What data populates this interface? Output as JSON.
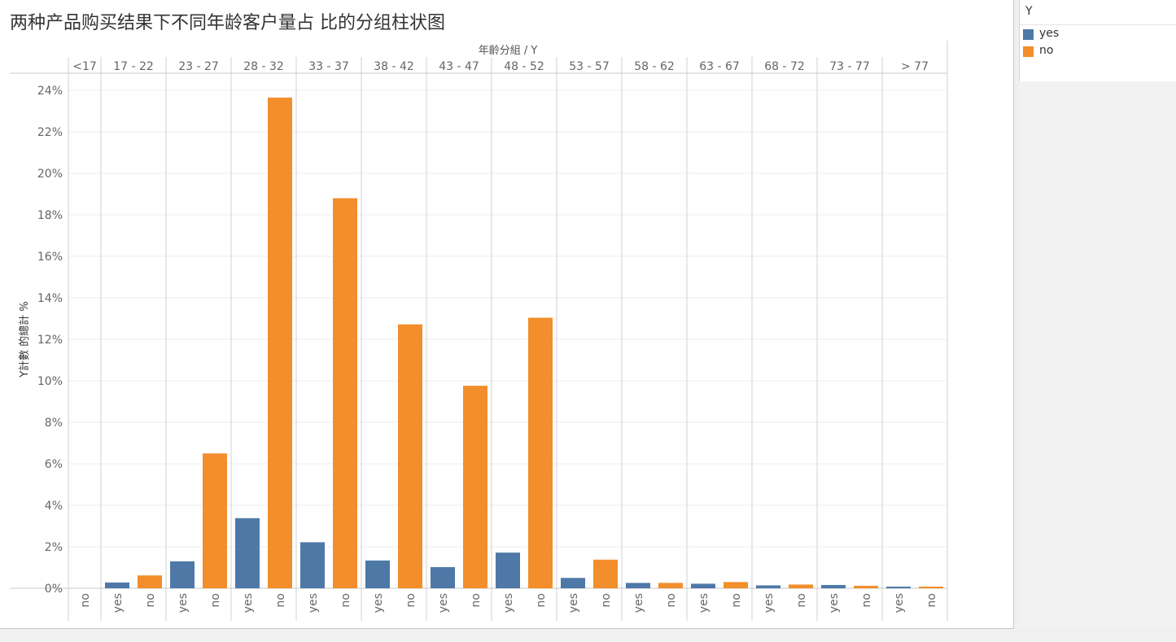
{
  "title": "两种产品购买结果下不同年龄客户量占 比的分组柱状图",
  "legend": {
    "title": "Y",
    "items": [
      {
        "label": "yes",
        "color": "#4e79a7"
      },
      {
        "label": "no",
        "color": "#f28e2b"
      }
    ]
  },
  "chart_data": {
    "type": "bar",
    "title": "两种产品购买结果下不同年龄客户量占 比的分组柱状图",
    "column_header": "年齡分組 / Y",
    "ylabel": "Y計數 的總計 %",
    "ylim": [
      0,
      24
    ],
    "yticks": [
      "0%",
      "2%",
      "4%",
      "6%",
      "8%",
      "10%",
      "12%",
      "14%",
      "16%",
      "18%",
      "20%",
      "22%",
      "24%"
    ],
    "grid": true,
    "legend_position": "right",
    "groups": [
      {
        "name": "<17",
        "bars": [
          {
            "y": "no",
            "value": 0.0
          }
        ]
      },
      {
        "name": "17 - 22",
        "bars": [
          {
            "y": "yes",
            "value": 0.28
          },
          {
            "y": "no",
            "value": 0.62
          }
        ]
      },
      {
        "name": "23 - 27",
        "bars": [
          {
            "y": "yes",
            "value": 1.3
          },
          {
            "y": "no",
            "value": 6.5
          }
        ]
      },
      {
        "name": "28 - 32",
        "bars": [
          {
            "y": "yes",
            "value": 3.38
          },
          {
            "y": "no",
            "value": 23.65
          }
        ]
      },
      {
        "name": "33 - 37",
        "bars": [
          {
            "y": "yes",
            "value": 2.22
          },
          {
            "y": "no",
            "value": 18.8
          }
        ]
      },
      {
        "name": "38 - 42",
        "bars": [
          {
            "y": "yes",
            "value": 1.34
          },
          {
            "y": "no",
            "value": 12.72
          }
        ]
      },
      {
        "name": "43 - 47",
        "bars": [
          {
            "y": "yes",
            "value": 1.02
          },
          {
            "y": "no",
            "value": 9.76
          }
        ]
      },
      {
        "name": "48 - 52",
        "bars": [
          {
            "y": "yes",
            "value": 1.72
          },
          {
            "y": "no",
            "value": 13.04
          }
        ]
      },
      {
        "name": "53 - 57",
        "bars": [
          {
            "y": "yes",
            "value": 0.5
          },
          {
            "y": "no",
            "value": 1.38
          }
        ]
      },
      {
        "name": "58 - 62",
        "bars": [
          {
            "y": "yes",
            "value": 0.26
          },
          {
            "y": "no",
            "value": 0.26
          }
        ]
      },
      {
        "name": "63 - 67",
        "bars": [
          {
            "y": "yes",
            "value": 0.22
          },
          {
            "y": "no",
            "value": 0.3
          }
        ]
      },
      {
        "name": "68 - 72",
        "bars": [
          {
            "y": "yes",
            "value": 0.14
          },
          {
            "y": "no",
            "value": 0.18
          }
        ]
      },
      {
        "name": "73 - 77",
        "bars": [
          {
            "y": "yes",
            "value": 0.16
          },
          {
            "y": "no",
            "value": 0.12
          }
        ]
      },
      {
        "name": "> 77",
        "bars": [
          {
            "y": "yes",
            "value": 0.08
          },
          {
            "y": "no",
            "value": 0.08
          }
        ]
      }
    ]
  }
}
